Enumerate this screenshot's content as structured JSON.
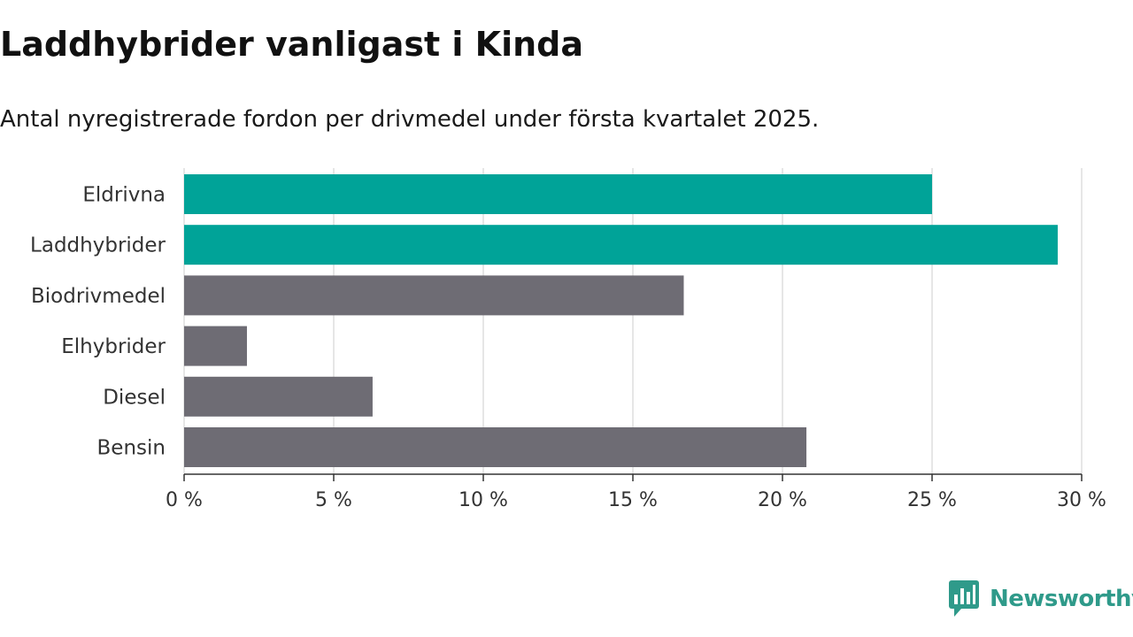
{
  "header": {
    "title": "Laddhybrider vanligast i Kinda",
    "subtitle": "Antal nyregistrerade fordon per drivmedel under första kvartalet 2025."
  },
  "brand": {
    "name": "Newsworthy",
    "icon": "newsworthy-logo-icon",
    "color": "#2f9a8a"
  },
  "colors": {
    "highlight": "#00a398",
    "default": "#6e6c74",
    "grid": "#dddddd",
    "axis": "#333333"
  },
  "chart_data": {
    "type": "bar",
    "orientation": "horizontal",
    "categories": [
      "Eldrivna",
      "Laddhybrider",
      "Biodrivmedel",
      "Elhybrider",
      "Diesel",
      "Bensin"
    ],
    "values": [
      25.0,
      29.2,
      16.7,
      2.1,
      6.3,
      20.8
    ],
    "highlighted": [
      true,
      true,
      false,
      false,
      false,
      false
    ],
    "xlim": [
      0,
      30
    ],
    "xticks": [
      0,
      5,
      10,
      15,
      20,
      25,
      30
    ],
    "xtick_labels": [
      "0 %",
      "5 %",
      "10 %",
      "15 %",
      "20 %",
      "25 %",
      "30 %"
    ],
    "grid": true
  }
}
